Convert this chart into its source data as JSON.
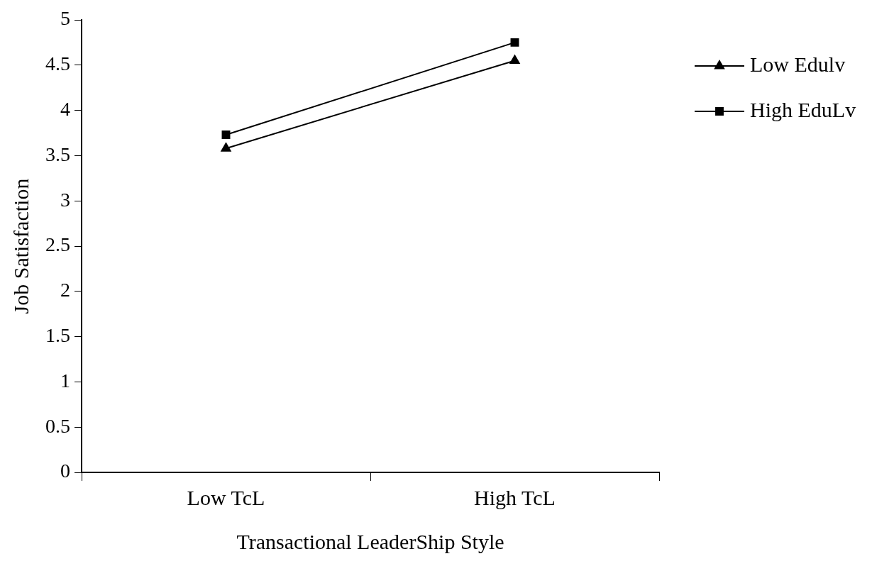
{
  "chart_data": {
    "type": "line",
    "xlabel": "Transactional LeaderShip Style",
    "ylabel": "Job Satisfaction",
    "categories": [
      "Low TcL",
      "High TcL"
    ],
    "series": [
      {
        "name": "Low Edulv",
        "color": "#000000",
        "values": [
          3.58,
          4.55
        ],
        "marker": "triangle"
      },
      {
        "name": "High EduLv",
        "color": "#000000",
        "values": [
          3.73,
          4.75
        ],
        "marker": "square"
      }
    ],
    "ylim": [
      0,
      5
    ],
    "yticks": [
      0,
      0.5,
      1,
      1.5,
      2,
      2.5,
      3,
      3.5,
      4,
      4.5,
      5
    ],
    "grid": false,
    "legend": "right",
    "line_style": "solid"
  }
}
